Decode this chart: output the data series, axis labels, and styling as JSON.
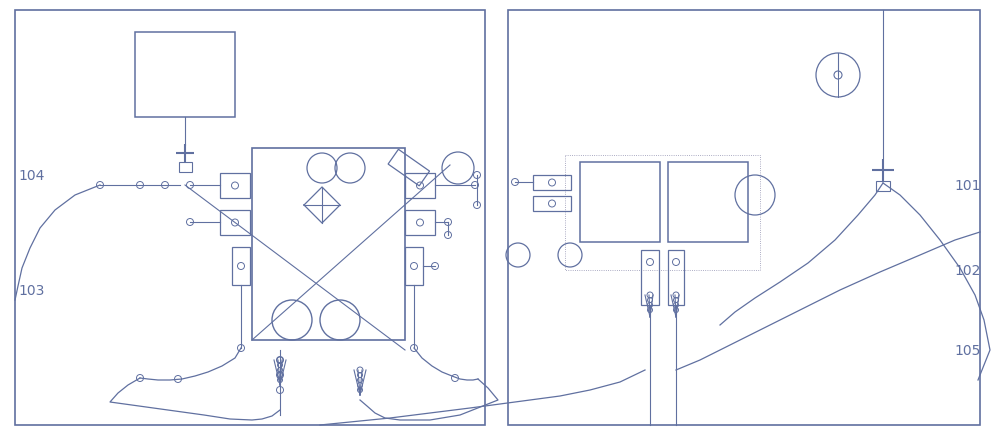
{
  "bg_color": "#ffffff",
  "border_color": "#6070a0",
  "line_color": "#6070a0",
  "label_color": "#6070a0",
  "fig_width": 10.0,
  "fig_height": 4.33,
  "dpi": 100
}
